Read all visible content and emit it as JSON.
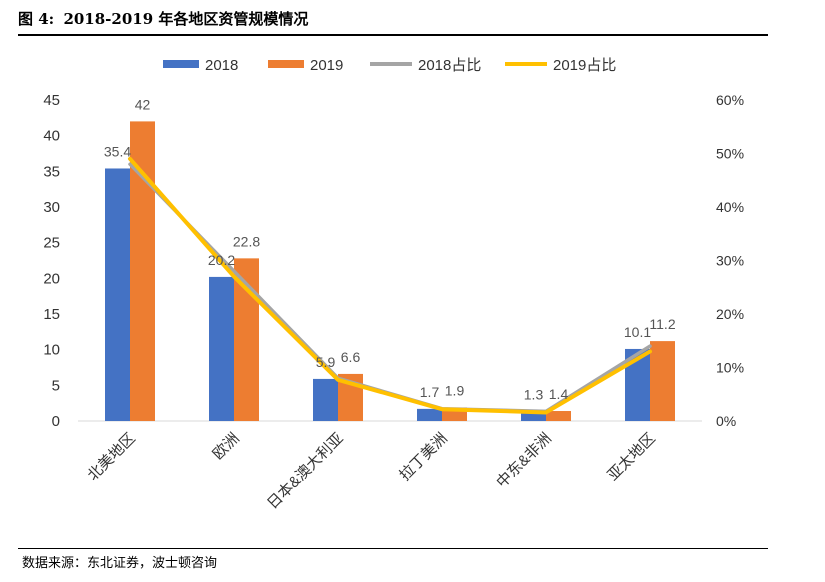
{
  "figure": {
    "label": "图 4:",
    "title": "2018-2019 年各地区资管规模情况",
    "source": "数据来源：东北证券，波士顿咨询"
  },
  "chart_data": {
    "type": "bar",
    "categories": [
      "北美地区",
      "欧洲",
      "日本&澳大利亚",
      "拉丁美洲",
      "中东&非洲",
      "亚太地区"
    ],
    "series": [
      {
        "name": "2018",
        "type": "bar",
        "axis": "left",
        "color": "#4472C4",
        "values": [
          35.4,
          20.2,
          5.9,
          1.7,
          1.3,
          10.1
        ],
        "labels": [
          "35.4",
          "20.2",
          "5.9",
          "1.7",
          "1.3",
          "10.1"
        ]
      },
      {
        "name": "2019",
        "type": "bar",
        "axis": "left",
        "color": "#ED7D31",
        "values": [
          42,
          22.8,
          6.6,
          1.9,
          1.4,
          11.2
        ],
        "labels": [
          "42",
          "22.8",
          "6.6",
          "1.9",
          "1.4",
          "11.2"
        ]
      },
      {
        "name": "2018占比",
        "type": "line",
        "axis": "right",
        "color": "#A5A5A5",
        "values": [
          0.48,
          0.28,
          0.08,
          0.023,
          0.018,
          0.14
        ]
      },
      {
        "name": "2019占比",
        "type": "line",
        "axis": "right",
        "color": "#FFC000",
        "values": [
          0.49,
          0.27,
          0.077,
          0.022,
          0.016,
          0.13
        ]
      }
    ],
    "ylim": [
      0,
      45
    ],
    "yticks": [
      "0",
      "5",
      "10",
      "15",
      "20",
      "25",
      "30",
      "35",
      "40",
      "45"
    ],
    "y2lim": [
      0,
      0.6
    ],
    "y2ticks": [
      "0%",
      "10%",
      "20%",
      "30%",
      "40%",
      "50%",
      "60%"
    ],
    "grid": false,
    "legend_position": "top"
  }
}
